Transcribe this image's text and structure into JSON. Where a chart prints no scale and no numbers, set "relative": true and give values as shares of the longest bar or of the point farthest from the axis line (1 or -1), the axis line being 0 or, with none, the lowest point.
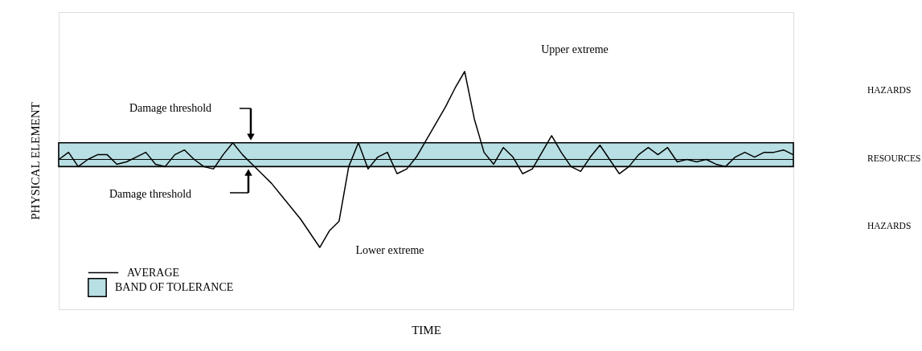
{
  "chart_data": {
    "type": "line",
    "relative": true,
    "xlabel": "TIME",
    "ylabel": "PHYSICAL ELEMENT",
    "categories": [
      null,
      null,
      null,
      null,
      null,
      null,
      null,
      null,
      null,
      null,
      null,
      null,
      null,
      null,
      null,
      null,
      null,
      null,
      null,
      null,
      null,
      null,
      null,
      null,
      null,
      null,
      null,
      null,
      null,
      null,
      null,
      null,
      null,
      null,
      null,
      null,
      null,
      null,
      null,
      null,
      null,
      null,
      null,
      null,
      null,
      null,
      null,
      null,
      null,
      null,
      null,
      null,
      null,
      null,
      null,
      null,
      null,
      null,
      null,
      null,
      null,
      null,
      null,
      null,
      null,
      null,
      null,
      null,
      null,
      null,
      null,
      null,
      null,
      null,
      null,
      null,
      null
    ],
    "series": [
      {
        "color": "#000000",
        "values": [
          0.63,
          0.66,
          0.6,
          0.63,
          0.65,
          0.65,
          0.61,
          0.62,
          0.64,
          0.66,
          0.61,
          0.6,
          0.65,
          0.67,
          0.63,
          0.6,
          0.59,
          0.65,
          0.7,
          0.65,
          0.61,
          0.57,
          0.53,
          0.48,
          0.43,
          0.38,
          0.32,
          0.26,
          0.33,
          0.37,
          0.6,
          0.7,
          0.59,
          0.64,
          0.66,
          0.57,
          0.59,
          0.64,
          0.71,
          0.78,
          0.85,
          0.93,
          1.0,
          0.8,
          0.66,
          0.61,
          0.68,
          0.64,
          0.57,
          0.59,
          0.66,
          0.73,
          0.66,
          0.6,
          0.58,
          0.64,
          0.69,
          0.63,
          0.57,
          0.6,
          0.65,
          0.68,
          0.65,
          0.68,
          0.62,
          0.63,
          0.62,
          0.63,
          0.61,
          0.6,
          0.64,
          0.66,
          0.64,
          0.66,
          0.66,
          0.67,
          0.65
        ]
      }
    ],
    "bands": [
      {
        "axis": "y",
        "from": 0.6,
        "to": 0.7,
        "label": "BAND OF TOLERANCE",
        "color": "#b8dfe3"
      }
    ],
    "ref_lines": [
      {
        "axis": "y",
        "value": 0.63,
        "label": "AVERAGE",
        "color": "#000000"
      }
    ],
    "annotations": [
      {
        "text": "Damage threshold",
        "y": 0.7
      },
      {
        "text": "Damage threshold",
        "y": 0.6
      },
      "Upper extreme",
      "Lower extreme",
      "HAZARDS",
      "RESOURCES",
      "HAZARDS"
    ],
    "legend": "bottom left",
    "grid": false,
    "marker": "none",
    "line_style": "solid"
  }
}
